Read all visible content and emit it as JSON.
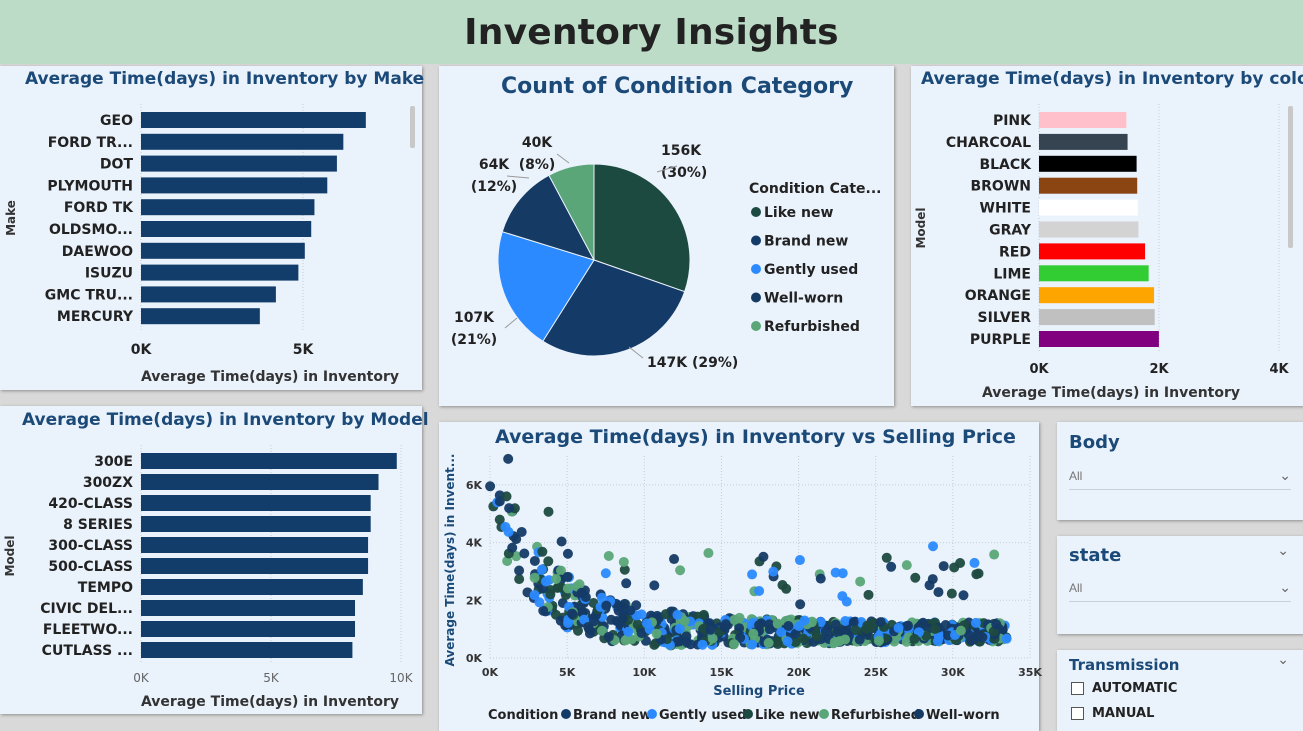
{
  "header": {
    "title": "Inventory Insights"
  },
  "make_chart": {
    "title": "Average Time(days) in Inventory by Make",
    "ylabel": "Make",
    "xlabel": "Average Time(days) in Inventory",
    "ticks": [
      "0K",
      "5K"
    ],
    "chart_data": {
      "type": "bar",
      "orientation": "horizontal",
      "categories": [
        "GEO",
        "FORD TR...",
        "DOT",
        "PLYMOUTH",
        "FORD TK",
        "OLDSMO...",
        "DAEWOO",
        "ISUZU",
        "GMC TRU...",
        "MERCURY"
      ],
      "values": [
        7000,
        6300,
        6100,
        5800,
        5400,
        5300,
        5100,
        4900,
        4200,
        3700
      ],
      "xlim": [
        0,
        8500
      ],
      "color": "#123d6a"
    }
  },
  "condition_chart": {
    "title": "Count of Condition Category",
    "legend_title": "Condition Cate...",
    "chart_data": {
      "type": "pie",
      "slices": [
        {
          "name": "Like new",
          "value": 156,
          "label1": "156K",
          "label2": "(30%)",
          "color": "#1d4a40"
        },
        {
          "name": "Brand new",
          "value": 147,
          "label1": "147K (29%)",
          "label2": "",
          "color": "#143a68"
        },
        {
          "name": "Gently used",
          "value": 107,
          "label1": "107K",
          "label2": "(21%)",
          "color": "#2b8aff"
        },
        {
          "name": "Well-worn",
          "value": 64,
          "label1": "64K",
          "label2": "(12%)",
          "color": "#153a63"
        },
        {
          "name": "Refurbished",
          "value": 40,
          "label1": "40K",
          "label2": "(8%)",
          "color": "#5aa678"
        }
      ]
    }
  },
  "color_chart": {
    "title": "Average Time(days) in Inventory by color",
    "ylabel": "Model",
    "xlabel": "Average Time(days) in Inventory",
    "ticks": [
      "0K",
      "2K",
      "4K"
    ],
    "chart_data": {
      "type": "bar",
      "orientation": "horizontal",
      "categories": [
        "PINK",
        "CHARCOAL",
        "BLACK",
        "BROWN",
        "WHITE",
        "GRAY",
        "RED",
        "LIME",
        "ORANGE",
        "SILVER",
        "PURPLE"
      ],
      "values": [
        1450,
        1470,
        1620,
        1630,
        1640,
        1650,
        1760,
        1820,
        1910,
        1920,
        1990
      ],
      "colors": [
        "#ffc0cb",
        "#364451",
        "#000000",
        "#8b4513",
        "#ffffff",
        "#d3d3d3",
        "#ff0000",
        "#32cd32",
        "#ffa500",
        "#c0c0c0",
        "#800080"
      ],
      "xlim": [
        0,
        4000
      ]
    }
  },
  "model_chart": {
    "title": "Average Time(days) in Inventory by Model",
    "ylabel": "Model",
    "xlabel": "Average Time(days) in Inventory",
    "ticks": [
      "0K",
      "5K",
      "10K"
    ],
    "chart_data": {
      "type": "bar",
      "orientation": "horizontal",
      "categories": [
        "300E",
        "300ZX",
        "420-CLASS",
        "8 SERIES",
        "300-CLASS",
        "500-CLASS",
        "TEMPO",
        "CIVIC DEL...",
        "FLEETWO...",
        "CUTLASS ..."
      ],
      "values": [
        9800,
        9100,
        8800,
        8800,
        8700,
        8700,
        8500,
        8200,
        8200,
        8100
      ],
      "xlim": [
        0,
        10000
      ],
      "color": "#123d6a"
    }
  },
  "scatter_chart": {
    "title": "Average Time(days) in Inventory vs Selling Price",
    "ylabel": "Average Time(days) in Invent...",
    "xlabel": "Selling Price",
    "xticks": [
      "0K",
      "5K",
      "10K",
      "15K",
      "20K",
      "25K",
      "30K",
      "35K"
    ],
    "yticks": [
      "0K",
      "2K",
      "4K",
      "6K"
    ],
    "legend_title": "Condition",
    "chart_data": {
      "type": "scatter",
      "xlim": [
        0,
        35000
      ],
      "ylim": [
        0,
        7000
      ],
      "series": [
        {
          "name": "Brand new",
          "color": "#143a68"
        },
        {
          "name": "Gently used",
          "color": "#2b8aff"
        },
        {
          "name": "Like new",
          "color": "#1d4a40"
        },
        {
          "name": "Refurbished",
          "color": "#5aa678"
        },
        {
          "name": "Well-worn",
          "color": "#153a63"
        }
      ],
      "trend": "time in inventory falls from about 6000 days near 0 selling price to about 1000 days beyond 15K"
    }
  },
  "slicers": {
    "body": {
      "title": "Body",
      "value": "All"
    },
    "state": {
      "title": "state",
      "value": "All"
    },
    "transmission": {
      "title": "Transmission",
      "options": [
        "AUTOMATIC",
        "MANUAL"
      ]
    }
  },
  "icons": {
    "chevron": "chevron-down-icon"
  }
}
